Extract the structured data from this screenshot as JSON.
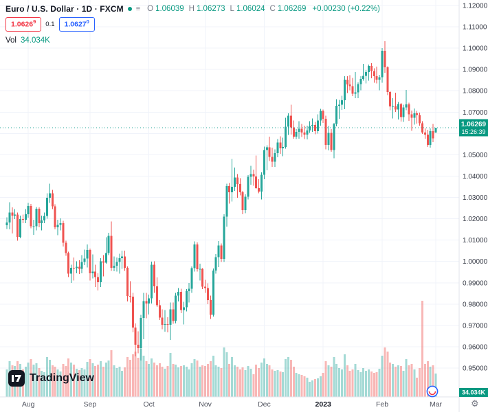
{
  "header": {
    "title": "Euro / U.S. Dollar · 1D · FXCM",
    "ohlc_labels": {
      "o": "O",
      "h": "H",
      "l": "L",
      "c": "C"
    },
    "ohlc_values": {
      "o": "1.06039",
      "h": "1.06273",
      "l": "1.06024",
      "c": "1.06269"
    },
    "change": "+0.00230 (+0.22%)",
    "sell_price": "1.0626",
    "sell_sup": "9",
    "spread": "0.1",
    "buy_price": "1.0627",
    "buy_sup": "0",
    "vol_label": "Vol",
    "vol_value": "34.034K"
  },
  "price_axis": {
    "last_price": "1.06269",
    "countdown": "15:26:39",
    "volume_tag": "34.034K"
  },
  "logo": {
    "text": "TradingView"
  },
  "colors": {
    "up": "#26a69a",
    "down": "#ef5350",
    "vol_up": "rgba(38,166,154,0.42)",
    "vol_down": "rgba(239,83,80,0.42)",
    "accent_green": "#089981",
    "sell_red": "#f23645",
    "buy_blue": "#2962ff",
    "grid": "#f0f3fa",
    "axis_border": "#e0e3eb",
    "axis_text": "#363a45",
    "tag_bg": "#089981"
  },
  "chart_data": {
    "type": "candlestick",
    "title": "Euro / U.S. Dollar",
    "timeframe": "1D",
    "exchange": "FXCM",
    "ylim": [
      0.95,
      1.12
    ],
    "grid": true,
    "legend_position": "top-left",
    "y_ticks": [
      "1.12000",
      "1.11000",
      "1.10000",
      "1.09000",
      "1.08000",
      "1.07000",
      "1.06000",
      "1.05000",
      "1.04000",
      "1.03000",
      "1.02000",
      "1.01000",
      "1.00000",
      "0.99000",
      "0.98000",
      "0.97000",
      "0.96000",
      "0.95000"
    ],
    "x_ticks": [
      {
        "label": "Aug",
        "index": 8
      },
      {
        "label": "Sep",
        "index": 31
      },
      {
        "label": "Oct",
        "index": 53
      },
      {
        "label": "Nov",
        "index": 74
      },
      {
        "label": "Dec",
        "index": 96
      },
      {
        "label": "2023",
        "index": 118,
        "bold": true
      },
      {
        "label": "Feb",
        "index": 140
      },
      {
        "label": "Mar",
        "index": 160
      }
    ],
    "last_price": 1.06269,
    "last_change": 0.0023,
    "last_change_pct": 0.22,
    "last_volume_k": 34.034,
    "volume_unit": "K",
    "columns": [
      "open",
      "high",
      "low",
      "close",
      "volume_k"
    ],
    "candles": [
      [
        1.017,
        1.0206,
        1.0152,
        1.0183,
        40
      ],
      [
        1.0183,
        1.0278,
        1.0151,
        1.0229,
        52
      ],
      [
        1.0229,
        1.0254,
        1.0131,
        1.0214,
        46
      ],
      [
        1.0214,
        1.0246,
        1.0198,
        1.022,
        45
      ],
      [
        1.022,
        1.023,
        1.0097,
        1.0115,
        52
      ],
      [
        1.0115,
        1.0215,
        1.0108,
        1.0199,
        48
      ],
      [
        1.0199,
        1.022,
        1.018,
        1.0196,
        40
      ],
      [
        1.0196,
        1.0245,
        1.018,
        1.0221,
        44
      ],
      [
        1.0221,
        1.0275,
        1.0205,
        1.026,
        50
      ],
      [
        1.026,
        1.027,
        1.0155,
        1.0165,
        55
      ],
      [
        1.0165,
        1.0195,
        1.0125,
        1.0165,
        47
      ],
      [
        1.0165,
        1.0255,
        1.0145,
        1.0247,
        49
      ],
      [
        1.0247,
        1.0253,
        1.016,
        1.018,
        42
      ],
      [
        1.018,
        1.0215,
        1.0145,
        1.0193,
        38
      ],
      [
        1.0193,
        1.023,
        1.018,
        1.0213,
        36
      ],
      [
        1.0213,
        1.032,
        1.02,
        1.0298,
        58
      ],
      [
        1.0298,
        1.0365,
        1.0275,
        1.032,
        54
      ],
      [
        1.032,
        1.0335,
        1.0245,
        1.0258,
        46
      ],
      [
        1.0258,
        1.0268,
        1.015,
        1.016,
        44
      ],
      [
        1.016,
        1.0195,
        1.0123,
        1.0171,
        40
      ],
      [
        1.0171,
        1.0202,
        1.0146,
        1.018,
        37
      ],
      [
        1.018,
        1.019,
        1.007,
        1.0088,
        48
      ],
      [
        1.0088,
        1.0098,
        1.0026,
        1.0039,
        45
      ],
      [
        1.0039,
        1.0046,
        0.9926,
        0.9943,
        56
      ],
      [
        0.9943,
        0.9985,
        0.99,
        0.997,
        50
      ],
      [
        0.997,
        1.0019,
        0.991,
        0.9968,
        47
      ],
      [
        0.9968,
        1.0,
        0.9945,
        0.9975,
        41
      ],
      [
        0.9975,
        1.0005,
        0.9941,
        0.9965,
        39
      ],
      [
        0.9965,
        1.003,
        0.9945,
        0.9998,
        42
      ],
      [
        0.9998,
        1.0055,
        0.9983,
        1.0013,
        40
      ],
      [
        1.0013,
        1.0079,
        0.9972,
        1.0054,
        51
      ],
      [
        1.0054,
        1.006,
        0.991,
        0.9945,
        55
      ],
      [
        0.9945,
        1.0033,
        0.992,
        0.9952,
        49
      ],
      [
        0.9952,
        0.9985,
        0.988,
        0.9926,
        45
      ],
      [
        0.9926,
        0.9945,
        0.9864,
        0.9903,
        47
      ],
      [
        0.9903,
        1.0015,
        0.988,
        1.0,
        52
      ],
      [
        1.0,
        1.003,
        0.993,
        0.9995,
        44
      ],
      [
        0.9995,
        1.0113,
        0.999,
        1.004,
        50
      ],
      [
        1.004,
        1.0135,
        1.003,
        1.012,
        53
      ],
      [
        1.012,
        1.0187,
        0.9955,
        0.997,
        68
      ],
      [
        0.997,
        1.0023,
        0.9954,
        0.998,
        46
      ],
      [
        0.998,
        1.0018,
        0.9952,
        0.9998,
        42
      ],
      [
        0.9998,
        1.0036,
        0.9943,
        1.0015,
        44
      ],
      [
        1.0015,
        1.005,
        0.9965,
        1.0023,
        38
      ],
      [
        1.0023,
        1.0051,
        0.9955,
        0.997,
        43
      ],
      [
        0.997,
        0.9976,
        0.9812,
        0.9838,
        58
      ],
      [
        0.9838,
        0.9907,
        0.9807,
        0.9835,
        54
      ],
      [
        0.9835,
        0.9852,
        0.9667,
        0.969,
        62
      ],
      [
        0.969,
        0.9709,
        0.9554,
        0.9609,
        66
      ],
      [
        0.9609,
        0.9672,
        0.957,
        0.9594,
        57
      ],
      [
        0.9594,
        0.975,
        0.9536,
        0.9735,
        70
      ],
      [
        0.9735,
        0.9853,
        0.9635,
        0.9814,
        60
      ],
      [
        0.9814,
        0.9853,
        0.9733,
        0.9802,
        52
      ],
      [
        0.9802,
        0.9844,
        0.9751,
        0.9826,
        48
      ],
      [
        0.9826,
        0.9999,
        0.9803,
        0.9985,
        56
      ],
      [
        0.9985,
        1.0,
        0.9852,
        0.9883,
        50
      ],
      [
        0.9883,
        0.9925,
        0.9787,
        0.9794,
        46
      ],
      [
        0.9794,
        0.9818,
        0.9726,
        0.9737,
        49
      ],
      [
        0.9737,
        0.9775,
        0.9682,
        0.9703,
        44
      ],
      [
        0.9703,
        0.9772,
        0.967,
        0.9706,
        41
      ],
      [
        0.9706,
        0.9739,
        0.9668,
        0.9703,
        45
      ],
      [
        0.9703,
        0.9807,
        0.9632,
        0.9776,
        64
      ],
      [
        0.9776,
        0.9808,
        0.9707,
        0.9721,
        48
      ],
      [
        0.9721,
        0.9852,
        0.971,
        0.984,
        47
      ],
      [
        0.984,
        0.9875,
        0.9813,
        0.9857,
        43
      ],
      [
        0.9857,
        0.9872,
        0.9757,
        0.9772,
        45
      ],
      [
        0.9772,
        0.981,
        0.9705,
        0.9785,
        46
      ],
      [
        0.9785,
        0.987,
        0.9765,
        0.9861,
        44
      ],
      [
        0.9861,
        0.9899,
        0.9808,
        0.9872,
        40
      ],
      [
        0.9872,
        0.9976,
        0.9852,
        0.9968,
        49
      ],
      [
        0.9968,
        1.0094,
        0.9952,
        1.008,
        55
      ],
      [
        1.008,
        1.0089,
        0.9952,
        0.9963,
        53
      ],
      [
        0.9963,
        0.999,
        0.991,
        0.9965,
        44
      ],
      [
        0.9965,
        0.9968,
        0.987,
        0.9881,
        46
      ],
      [
        0.9881,
        0.9913,
        0.9853,
        0.9875,
        45
      ],
      [
        0.9875,
        0.9898,
        0.98,
        0.9818,
        48
      ],
      [
        0.9818,
        0.984,
        0.973,
        0.975,
        52
      ],
      [
        0.975,
        0.9967,
        0.9742,
        0.9957,
        60
      ],
      [
        0.9957,
        1.0034,
        0.9942,
        1.002,
        46
      ],
      [
        1.002,
        1.0096,
        0.9974,
        1.0074,
        44
      ],
      [
        1.0074,
        1.0085,
        0.9998,
        1.0012,
        42
      ],
      [
        1.0012,
        1.0222,
        0.9998,
        1.021,
        72
      ],
      [
        1.021,
        1.0364,
        1.0163,
        1.0353,
        65
      ],
      [
        1.0353,
        1.0368,
        1.0271,
        1.0325,
        48
      ],
      [
        1.0325,
        1.048,
        1.028,
        1.035,
        58
      ],
      [
        1.035,
        1.044,
        1.033,
        1.0393,
        46
      ],
      [
        1.0393,
        1.041,
        1.0298,
        1.0363,
        44
      ],
      [
        1.0363,
        1.039,
        1.031,
        1.0325,
        40
      ],
      [
        1.0325,
        1.033,
        1.0222,
        1.024,
        43
      ],
      [
        1.024,
        1.0315,
        1.0226,
        1.0303,
        39
      ],
      [
        1.0303,
        1.0405,
        1.029,
        1.0397,
        45
      ],
      [
        1.0397,
        1.0448,
        1.036,
        1.041,
        41
      ],
      [
        1.041,
        1.043,
        1.0355,
        1.0399,
        33
      ],
      [
        1.0399,
        1.0497,
        1.034,
        1.0343,
        47
      ],
      [
        1.0343,
        1.0385,
        1.0319,
        1.0328,
        42
      ],
      [
        1.0328,
        1.0417,
        1.029,
        1.0406,
        50
      ],
      [
        1.0406,
        1.0539,
        1.0385,
        1.0523,
        56
      ],
      [
        1.0523,
        1.0545,
        1.0428,
        1.0535,
        48
      ],
      [
        1.0535,
        1.0585,
        1.047,
        1.049,
        46
      ],
      [
        1.049,
        1.0533,
        1.0443,
        1.0467,
        40
      ],
      [
        1.0467,
        1.0526,
        1.0444,
        1.0507,
        38
      ],
      [
        1.0507,
        1.0573,
        1.0489,
        1.0557,
        39
      ],
      [
        1.0557,
        1.0587,
        1.0505,
        1.0531,
        37
      ],
      [
        1.0531,
        1.058,
        1.0493,
        1.0537,
        36
      ],
      [
        1.0537,
        1.0673,
        1.0528,
        1.0631,
        55
      ],
      [
        1.0631,
        1.0695,
        1.0593,
        1.0683,
        58
      ],
      [
        1.0683,
        1.0735,
        1.0594,
        1.0628,
        54
      ],
      [
        1.0628,
        1.066,
        1.0575,
        1.0585,
        44
      ],
      [
        1.0585,
        1.062,
        1.0574,
        1.0607,
        35
      ],
      [
        1.0607,
        1.0658,
        1.0576,
        1.0622,
        33
      ],
      [
        1.0622,
        1.0645,
        1.0583,
        1.0604,
        32
      ],
      [
        1.0604,
        1.0636,
        1.0573,
        1.0594,
        30
      ],
      [
        1.0594,
        1.0636,
        1.0572,
        1.0614,
        28
      ],
      [
        1.0614,
        1.0658,
        1.0602,
        1.0635,
        22
      ],
      [
        1.0635,
        1.067,
        1.0608,
        1.064,
        24
      ],
      [
        1.064,
        1.0655,
        1.0597,
        1.061,
        26
      ],
      [
        1.061,
        1.069,
        1.06,
        1.0661,
        27
      ],
      [
        1.0661,
        1.0715,
        1.0637,
        1.0705,
        30
      ],
      [
        1.0705,
        1.0712,
        1.0649,
        1.0668,
        35
      ],
      [
        1.0668,
        1.0683,
        1.0525,
        1.0546,
        52
      ],
      [
        1.0546,
        1.0635,
        1.052,
        1.0603,
        46
      ],
      [
        1.0603,
        1.0621,
        1.0515,
        1.0522,
        44
      ],
      [
        1.0522,
        1.065,
        1.0483,
        1.0644,
        58
      ],
      [
        1.0644,
        1.0761,
        1.0634,
        1.073,
        48
      ],
      [
        1.073,
        1.0758,
        1.0669,
        1.0734,
        42
      ],
      [
        1.0734,
        1.0776,
        1.0711,
        1.0756,
        40
      ],
      [
        1.0756,
        1.0868,
        1.0714,
        1.0852,
        62
      ],
      [
        1.0852,
        1.0869,
        1.0789,
        1.083,
        46
      ],
      [
        1.083,
        1.0874,
        1.0802,
        1.0821,
        38
      ],
      [
        1.0821,
        1.086,
        1.0775,
        1.0787,
        40
      ],
      [
        1.0787,
        1.0887,
        1.0766,
        1.0793,
        48
      ],
      [
        1.0793,
        1.084,
        1.0766,
        1.0832,
        39
      ],
      [
        1.0832,
        1.0868,
        1.0802,
        1.0856,
        36
      ],
      [
        1.0856,
        1.0927,
        1.0848,
        1.087,
        42
      ],
      [
        1.087,
        1.0898,
        1.0835,
        1.0887,
        38
      ],
      [
        1.0887,
        1.0923,
        1.0848,
        1.0916,
        40
      ],
      [
        1.0916,
        1.0929,
        1.0859,
        1.0893,
        37
      ],
      [
        1.0893,
        1.0906,
        1.0838,
        1.0868,
        35
      ],
      [
        1.0868,
        1.0913,
        1.0834,
        1.0852,
        36
      ],
      [
        1.0852,
        1.0875,
        1.0802,
        1.0863,
        41
      ],
      [
        1.0863,
        1.1,
        1.0838,
        1.0988,
        60
      ],
      [
        1.0988,
        1.1033,
        1.0885,
        1.091,
        72
      ],
      [
        1.091,
        1.0915,
        1.078,
        1.0795,
        66
      ],
      [
        1.0795,
        1.0798,
        1.0709,
        1.0726,
        50
      ],
      [
        1.0726,
        1.0766,
        1.067,
        1.0728,
        48
      ],
      [
        1.0728,
        1.0791,
        1.0701,
        1.0712,
        44
      ],
      [
        1.0712,
        1.0748,
        1.0666,
        1.0738,
        46
      ],
      [
        1.0738,
        1.0743,
        1.0656,
        1.0677,
        45
      ],
      [
        1.0677,
        1.0735,
        1.0655,
        1.0722,
        38
      ],
      [
        1.0722,
        1.0804,
        1.0709,
        1.0737,
        55
      ],
      [
        1.0737,
        1.0744,
        1.0659,
        1.0689,
        46
      ],
      [
        1.0689,
        1.0708,
        1.0613,
        1.0673,
        48
      ],
      [
        1.0673,
        1.0717,
        1.0641,
        1.0695,
        40
      ],
      [
        1.0695,
        1.0706,
        1.0647,
        1.0686,
        28
      ],
      [
        1.0686,
        1.0697,
        1.0636,
        1.0648,
        42
      ],
      [
        1.0648,
        1.0658,
        1.0598,
        1.0605,
        140
      ],
      [
        1.0605,
        1.0623,
        1.0575,
        1.0595,
        48
      ],
      [
        1.0595,
        1.0618,
        1.0536,
        1.0546,
        52
      ],
      [
        1.0546,
        1.0624,
        1.0533,
        1.061,
        44
      ],
      [
        1.061,
        1.0645,
        1.056,
        1.0577,
        46
      ],
      [
        1.06039,
        1.06273,
        1.06024,
        1.06269,
        34.034
      ]
    ]
  }
}
